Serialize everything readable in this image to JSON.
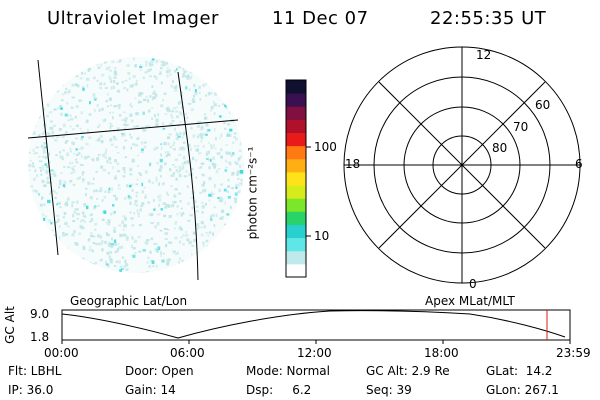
{
  "header": {
    "title": "Ultraviolet Imager",
    "date": "11 Dec 07",
    "time": "22:55:35 UT"
  },
  "colorbar": {
    "label": "photon cm⁻²s⁻¹",
    "ticks": [
      "100",
      "10"
    ],
    "colors": [
      "#ffffff",
      "#bfe9ea",
      "#5fe6e6",
      "#2ad0d0",
      "#29d36a",
      "#7ce62a",
      "#d6ec1a",
      "#ffe31a",
      "#ffae14",
      "#ff7a12",
      "#e81a1a",
      "#b0102a",
      "#801040",
      "#3a1050",
      "#101030"
    ]
  },
  "polar": {
    "labels": {
      "top": "12",
      "left": "18",
      "right": "6",
      "bottom": "0"
    },
    "rings": [
      "60",
      "70",
      "80"
    ]
  },
  "timeline": {
    "left_label": "Geographic Lat/Lon",
    "right_label": "Apex MLat/MLT",
    "axis_title": "GC Alt",
    "y_ticks": [
      "9.0",
      "1.8"
    ],
    "x_ticks": [
      "00:00",
      "06:00",
      "12:00",
      "18:00",
      "23:59"
    ]
  },
  "info": {
    "row1": [
      "Flt: LBHL",
      "Door: Open",
      "Mode: Normal",
      "GC Alt: 2.9 Re",
      "GLat:  14.2"
    ],
    "row2": [
      "IP: 36.0",
      "Gain: 14",
      "Dsp:     6.2",
      "Seq: 39",
      "GLon: 267.1"
    ]
  },
  "colors": {
    "background": "#ffffff",
    "foreground": "#000000",
    "cursor": "#d02020",
    "speckle": "#bfe5e6",
    "speckle_bright": "#2fd8e0"
  }
}
